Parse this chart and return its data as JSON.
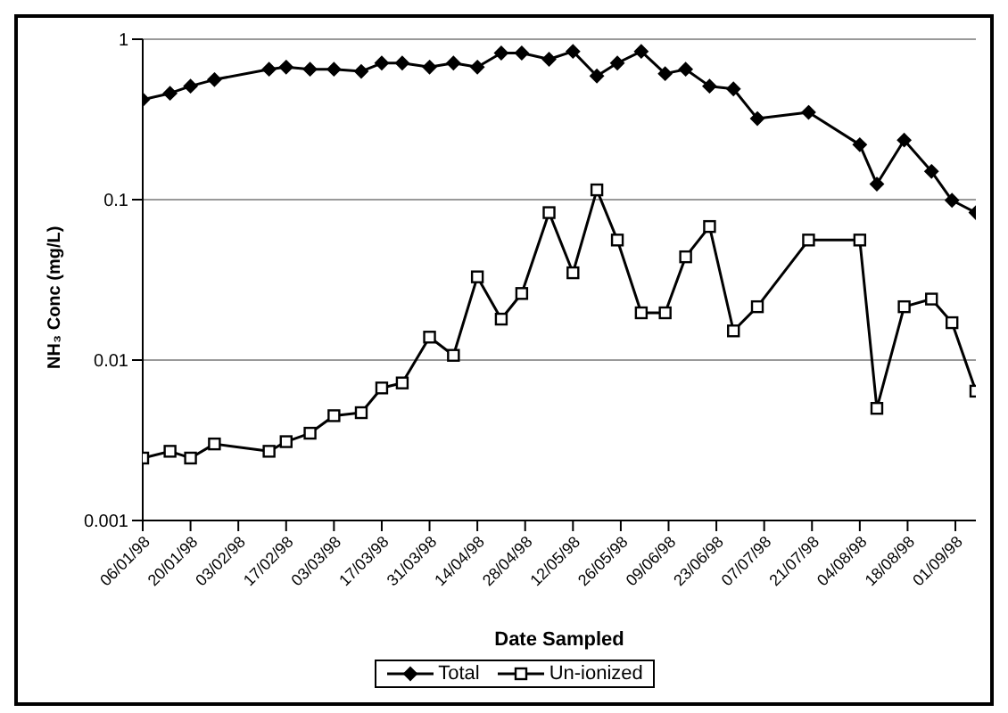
{
  "chart_data": {
    "type": "line",
    "xlabel": "Date Sampled",
    "ylabel": "NH₃ Conc (mg/L)",
    "x": [
      "1998-01-06",
      "1998-01-14",
      "1998-01-20",
      "1998-01-27",
      "1998-02-12",
      "1998-02-17",
      "1998-02-24",
      "1998-03-03",
      "1998-03-11",
      "1998-03-17",
      "1998-03-23",
      "1998-03-31",
      "1998-04-07",
      "1998-04-14",
      "1998-04-21",
      "1998-04-27",
      "1998-05-05",
      "1998-05-12",
      "1998-05-19",
      "1998-05-25",
      "1998-06-01",
      "1998-06-08",
      "1998-06-14",
      "1998-06-21",
      "1998-06-28",
      "1998-07-05",
      "1998-07-20",
      "1998-08-04",
      "1998-08-09",
      "1998-08-17",
      "1998-08-25",
      "1998-08-31",
      "1998-09-07"
    ],
    "series": [
      {
        "name": "Total",
        "color": "#000000",
        "marker": "diamond",
        "values": [
          0.42,
          0.46,
          0.51,
          0.56,
          0.65,
          0.67,
          0.65,
          0.65,
          0.63,
          0.71,
          0.71,
          0.67,
          0.71,
          0.67,
          0.82,
          0.82,
          0.75,
          0.84,
          0.59,
          0.71,
          0.84,
          0.61,
          0.65,
          0.51,
          0.49,
          0.32,
          0.35,
          0.22,
          0.125,
          0.235,
          0.15,
          0.099,
          0.083
        ]
      },
      {
        "name": "Un-ionized",
        "color": "#000000",
        "marker": "square",
        "values": [
          0.00245,
          0.0027,
          0.00245,
          0.003,
          0.0027,
          0.0031,
          0.0035,
          0.0045,
          0.0047,
          0.0067,
          0.0072,
          0.0139,
          0.0107,
          0.033,
          0.018,
          0.026,
          0.083,
          0.035,
          0.115,
          0.056,
          0.0197,
          0.0197,
          0.044,
          0.068,
          0.0152,
          0.0215,
          0.056,
          0.056,
          0.005,
          0.0215,
          0.024,
          0.0171,
          0.0064
        ]
      }
    ],
    "xlim": [
      "1998-01-06",
      "1998-09-07"
    ],
    "xticks": [
      {
        "value": "1998-01-06",
        "label": "06/01/98"
      },
      {
        "value": "1998-01-20",
        "label": "20/01/98"
      },
      {
        "value": "1998-02-03",
        "label": "03/02/98"
      },
      {
        "value": "1998-02-17",
        "label": "17/02/98"
      },
      {
        "value": "1998-03-03",
        "label": "03/03/98"
      },
      {
        "value": "1998-03-17",
        "label": "17/03/98"
      },
      {
        "value": "1998-03-31",
        "label": "31/03/98"
      },
      {
        "value": "1998-04-14",
        "label": "14/04/98"
      },
      {
        "value": "1998-04-28",
        "label": "28/04/98"
      },
      {
        "value": "1998-05-12",
        "label": "12/05/98"
      },
      {
        "value": "1998-05-26",
        "label": "26/05/98"
      },
      {
        "value": "1998-06-09",
        "label": "09/06/98"
      },
      {
        "value": "1998-06-23",
        "label": "23/06/98"
      },
      {
        "value": "1998-07-07",
        "label": "07/07/98"
      },
      {
        "value": "1998-07-21",
        "label": "21/07/98"
      },
      {
        "value": "1998-08-04",
        "label": "04/08/98"
      },
      {
        "value": "1998-08-18",
        "label": "18/08/98"
      },
      {
        "value": "1998-09-01",
        "label": "01/09/98"
      }
    ],
    "ylim": [
      0.001,
      1
    ],
    "yticks": [
      0.001,
      0.01,
      0.1,
      1
    ],
    "log": "y",
    "grid": "y",
    "legend": "bottom",
    "line_style": "solid"
  }
}
